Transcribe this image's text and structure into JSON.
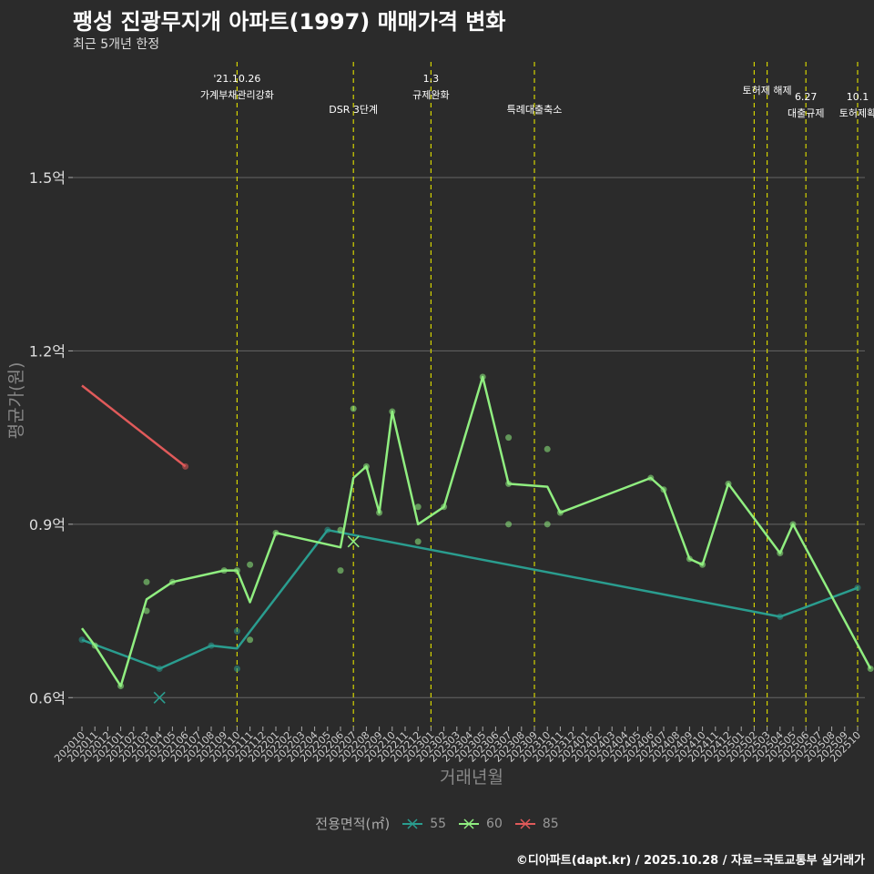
{
  "title": "팽성 진광무지개 아파트(1997) 매매가격 변화",
  "subtitle": "최근 5개년 한정",
  "caption": "©디아파트(dapt.kr) / 2025.10.28 / 자료=국토교통부 실거래가",
  "chart_data": {
    "type": "line",
    "xlabel": "거래년월",
    "ylabel": "평균가(원)",
    "x_categories": [
      "202010",
      "202011",
      "202012",
      "202101",
      "202102",
      "202103",
      "202104",
      "202105",
      "202106",
      "202107",
      "202108",
      "202109",
      "202110",
      "202111",
      "202112",
      "202201",
      "202202",
      "202203",
      "202204",
      "202205",
      "202206",
      "202207",
      "202208",
      "202209",
      "202210",
      "202211",
      "202212",
      "202301",
      "202302",
      "202303",
      "202304",
      "202305",
      "202306",
      "202307",
      "202308",
      "202309",
      "202310",
      "202311",
      "202312",
      "202401",
      "202402",
      "202403",
      "202404",
      "202405",
      "202406",
      "202407",
      "202408",
      "202409",
      "202410",
      "202411",
      "202412",
      "202501",
      "202502",
      "202503",
      "202504",
      "202505",
      "202506",
      "202507",
      "202508",
      "202509",
      "202510"
    ],
    "ylim": [
      0.55,
      1.7
    ],
    "y_ticks": [
      {
        "value": 0.6,
        "label": "0.6억"
      },
      {
        "value": 0.9,
        "label": "0.9억"
      },
      {
        "value": 1.2,
        "label": "1.2억"
      },
      {
        "value": 1.5,
        "label": "1.5억"
      }
    ],
    "legend_title": "전용면적(㎡)",
    "series": [
      {
        "name": "55",
        "color": "#2a9d8f",
        "line": [
          [
            0,
            0.7
          ],
          [
            6,
            0.65
          ],
          [
            10,
            0.69
          ],
          [
            12,
            0.685
          ],
          [
            19,
            0.89
          ],
          [
            54,
            0.74
          ],
          [
            60,
            0.79
          ]
        ],
        "points": [
          [
            0,
            0.7
          ],
          [
            6,
            0.65
          ],
          [
            10,
            0.69
          ],
          [
            12,
            0.715
          ],
          [
            12,
            0.65
          ],
          [
            19,
            0.89
          ],
          [
            54,
            0.74
          ],
          [
            60,
            0.79
          ]
        ],
        "cross": [
          [
            6,
            0.6
          ]
        ]
      },
      {
        "name": "60",
        "color": "#90ee80",
        "line": [
          [
            0,
            0.72
          ],
          [
            1,
            0.69
          ],
          [
            3,
            0.62
          ],
          [
            5,
            0.77
          ],
          [
            7,
            0.8
          ],
          [
            11,
            0.82
          ],
          [
            12,
            0.82
          ],
          [
            13,
            0.765
          ],
          [
            15,
            0.885
          ],
          [
            20,
            0.86
          ],
          [
            21,
            0.98
          ],
          [
            22,
            1.0
          ],
          [
            23,
            0.92
          ],
          [
            24,
            1.095
          ],
          [
            26,
            0.9
          ],
          [
            28,
            0.93
          ],
          [
            31,
            1.155
          ],
          [
            33,
            0.97
          ],
          [
            36,
            0.965
          ],
          [
            37,
            0.92
          ],
          [
            44,
            0.98
          ],
          [
            45,
            0.96
          ],
          [
            47,
            0.84
          ],
          [
            48,
            0.83
          ],
          [
            50,
            0.97
          ],
          [
            54,
            0.85
          ],
          [
            55,
            0.9
          ],
          [
            61,
            0.65
          ]
        ],
        "points": [
          [
            1,
            0.69
          ],
          [
            3,
            0.62
          ],
          [
            5,
            0.8
          ],
          [
            5,
            0.75
          ],
          [
            7,
            0.8
          ],
          [
            11,
            0.82
          ],
          [
            12,
            0.82
          ],
          [
            13,
            0.83
          ],
          [
            13,
            0.7
          ],
          [
            15,
            0.885
          ],
          [
            20,
            0.89
          ],
          [
            20,
            0.82
          ],
          [
            21,
            1.1
          ],
          [
            22,
            1.0
          ],
          [
            23,
            0.92
          ],
          [
            24,
            1.095
          ],
          [
            26,
            0.93
          ],
          [
            26,
            0.87
          ],
          [
            28,
            0.93
          ],
          [
            31,
            1.155
          ],
          [
            33,
            1.05
          ],
          [
            33,
            0.97
          ],
          [
            33,
            0.9
          ],
          [
            36,
            1.03
          ],
          [
            36,
            0.9
          ],
          [
            37,
            0.92
          ],
          [
            44,
            0.98
          ],
          [
            45,
            0.96
          ],
          [
            47,
            0.84
          ],
          [
            48,
            0.83
          ],
          [
            50,
            0.97
          ],
          [
            54,
            0.85
          ],
          [
            55,
            0.9
          ],
          [
            61,
            0.65
          ]
        ],
        "cross": [
          [
            21,
            0.87
          ]
        ]
      },
      {
        "name": "85",
        "color": "#e05a5a",
        "line": [
          [
            0,
            1.14
          ],
          [
            8,
            1.0
          ]
        ],
        "points": [
          [
            8,
            1.0
          ]
        ],
        "cross": []
      }
    ],
    "events": [
      {
        "x": 12,
        "label": "'21.10.26\n가계부채관리강화",
        "level": "upper"
      },
      {
        "x": 21,
        "label": "DSR 3단계",
        "level": "lower"
      },
      {
        "x": 27,
        "label": "1.3\n규제완화",
        "level": "upper"
      },
      {
        "x": 35,
        "label": "특례대출축소",
        "level": "lower"
      },
      {
        "x": 52,
        "label": "",
        "level": "upper"
      },
      {
        "x": 53,
        "label": "토허제 해제",
        "level": "upper"
      },
      {
        "x": 56,
        "label": "6.27\n대출규제",
        "level": "mid"
      },
      {
        "x": 60,
        "label": "10.1\n토허제확",
        "level": "mid"
      }
    ]
  }
}
